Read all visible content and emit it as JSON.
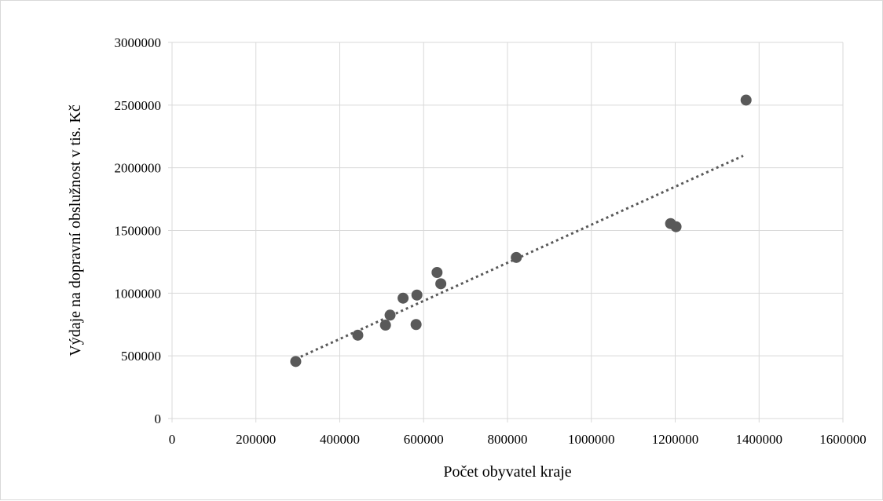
{
  "chart_data": {
    "type": "scatter",
    "title": "",
    "xlabel": "Počet obyvatel kraje",
    "ylabel": "Výdaje na dopravní obslužnost v tis. Kč",
    "xlim": [
      0,
      1600000
    ],
    "ylim": [
      0,
      3000000
    ],
    "x_ticks": [
      0,
      200000,
      400000,
      600000,
      800000,
      1000000,
      1200000,
      1400000,
      1600000
    ],
    "y_ticks": [
      0,
      500000,
      1000000,
      1500000,
      2000000,
      2500000,
      3000000
    ],
    "x_tick_labels": [
      "0",
      "200000",
      "400000",
      "600000",
      "800000",
      "1000000",
      "1200000",
      "1400000",
      "1600000"
    ],
    "y_tick_labels": [
      "0",
      "500000",
      "1000000",
      "1500000",
      "2000000",
      "2500000",
      "3000000"
    ],
    "grid": true,
    "legend": "none",
    "series": [
      {
        "x": [
          295000,
          443000,
          509000,
          520000,
          551000,
          582000,
          584000,
          632000,
          641000,
          821000,
          1189000,
          1202000,
          1369000
        ],
        "y": [
          455000,
          665000,
          745000,
          825000,
          960000,
          750000,
          985000,
          1165000,
          1075000,
          1285000,
          1555000,
          1530000,
          2540000
        ]
      }
    ],
    "trendline": {
      "type": "linear",
      "x_range": [
        295000,
        1362000
      ],
      "style": "dotted"
    },
    "colors": {
      "marker": "#595959",
      "grid": "#d9d9d9",
      "trendline": "#595959"
    }
  }
}
